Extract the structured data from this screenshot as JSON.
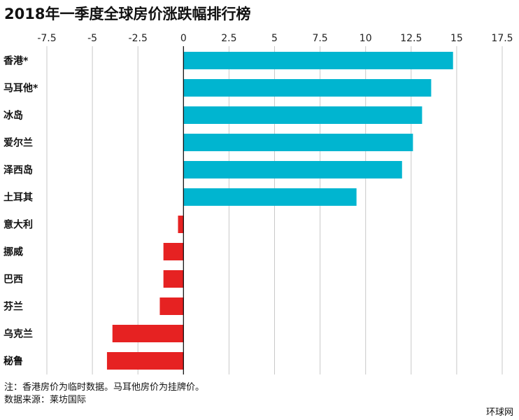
{
  "title": "2018年一季度全球房价涨跌幅排行榜",
  "notes": {
    "line1": "注：香港房价为临时数据。马耳他房价为挂牌价。",
    "line2": "数据来源：莱坊国际"
  },
  "source": "环球网",
  "colors": {
    "positive": "#00b5d0",
    "negative": "#e62222",
    "grid": "#c8c8c8",
    "zero": "#000000"
  },
  "chart_data": {
    "type": "bar",
    "orientation": "horizontal",
    "title": "2018年一季度全球房价涨跌幅排行榜",
    "xlabel": "",
    "ylabel": "",
    "xlim": [
      -7.5,
      17.5
    ],
    "xticks": [
      -7.5,
      -5,
      -2.5,
      0,
      2.5,
      5,
      7.5,
      10,
      12.5,
      15,
      17.5
    ],
    "xtick_labels": [
      "-7.5",
      "-5",
      "-2.5",
      "0",
      "2.5",
      "5",
      "7.5",
      "10",
      "12.5",
      "15",
      "17.5"
    ],
    "grid": true,
    "categories": [
      "香港*",
      "马耳他*",
      "冰岛",
      "爱尔兰",
      "泽西岛",
      "土耳其",
      "意大利",
      "挪威",
      "巴西",
      "芬兰",
      "乌克兰",
      "秘鲁"
    ],
    "values": [
      14.8,
      13.6,
      13.1,
      12.6,
      12.0,
      9.5,
      -0.3,
      -1.1,
      -1.1,
      -1.3,
      -3.9,
      -4.2
    ]
  }
}
